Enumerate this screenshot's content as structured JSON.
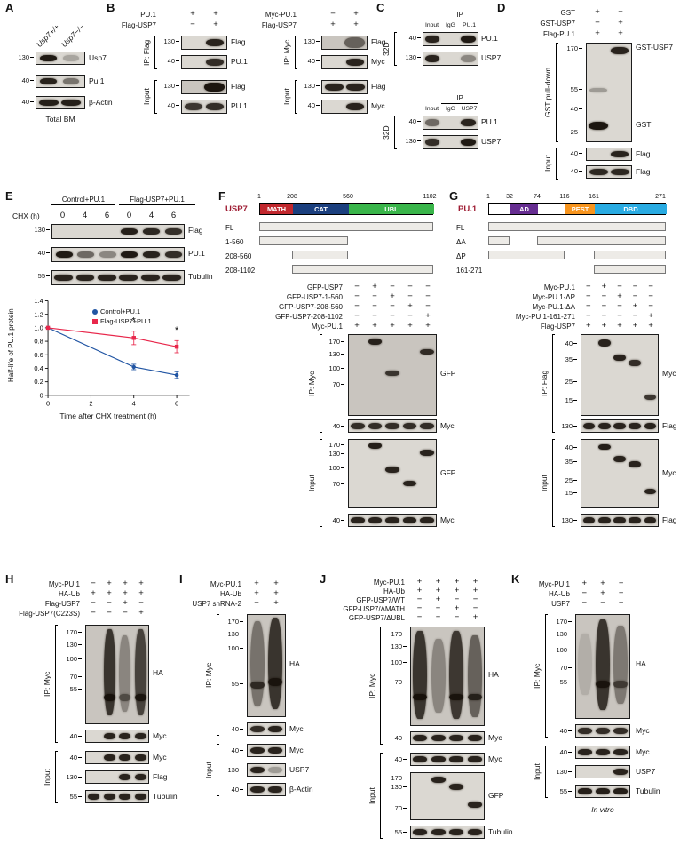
{
  "colors": {
    "usp7_math": "#c1272d",
    "usp7_cat": "#1b3f7e",
    "usp7_ubl": "#39b54a",
    "pu1_ad": "#662d91",
    "pu1_pest": "#f7941d",
    "pu1_dbd": "#29abe2",
    "protein_name": "#9e1b32",
    "control_series": "#2155a3",
    "usp7_series": "#e8274b"
  },
  "A": {
    "letter": "A",
    "lanes": [
      "Usp7+/+",
      "Usp7−/−"
    ],
    "strips": [
      {
        "marker": "130",
        "label": "Usp7"
      },
      {
        "marker": "40",
        "label": "Pu.1"
      },
      {
        "marker": "40",
        "label": "β-Actin"
      }
    ],
    "caption": "Total BM"
  },
  "B": {
    "letter": "B",
    "left": {
      "rows": [
        {
          "label": "PU.1",
          "signs": [
            "+",
            "+"
          ]
        },
        {
          "label": "Flag-USP7",
          "signs": [
            "−",
            "+"
          ]
        }
      ],
      "ip": "IP: Flag",
      "input": "Input",
      "strips": [
        {
          "marker": "130",
          "label": "Flag"
        },
        {
          "marker": "40",
          "label": "PU.1"
        },
        {
          "marker": "130",
          "label": "Flag"
        },
        {
          "marker": "40",
          "label": "PU.1"
        }
      ]
    },
    "right": {
      "rows": [
        {
          "label": "Myc-PU.1",
          "signs": [
            "−",
            "+"
          ]
        },
        {
          "label": "Flag-USP7",
          "signs": [
            "+",
            "+"
          ]
        }
      ],
      "ip": "IP: Myc",
      "input": "Input",
      "strips": [
        {
          "marker": "130",
          "label": "Flag"
        },
        {
          "marker": "40",
          "label": "Myc"
        },
        {
          "marker": "130",
          "label": "Flag"
        },
        {
          "marker": "40",
          "label": "Myc"
        }
      ]
    }
  },
  "C": {
    "letter": "C",
    "groups": [
      {
        "ip": "IP",
        "cell": "32D",
        "cols": [
          "Input",
          "IgG",
          "PU.1"
        ],
        "strips": [
          {
            "marker": "40",
            "label": "PU.1"
          },
          {
            "marker": "130",
            "label": "USP7"
          }
        ]
      },
      {
        "ip": "IP",
        "cell": "32D",
        "cols": [
          "Input",
          "IgG",
          "USP7"
        ],
        "strips": [
          {
            "marker": "40",
            "label": "PU.1"
          },
          {
            "marker": "130",
            "label": "USP7"
          }
        ]
      }
    ]
  },
  "D": {
    "letter": "D",
    "rows": [
      {
        "label": "GST",
        "signs": [
          "+",
          "−"
        ]
      },
      {
        "label": "GST-USP7",
        "signs": [
          "−",
          "+"
        ]
      },
      {
        "label": "Flag-PU.1",
        "signs": [
          "+",
          "+"
        ]
      }
    ],
    "pulldown": "GST pull-down",
    "input": "Input",
    "markers": [
      "170",
      "55",
      "40",
      "25"
    ],
    "band_top": "GST-USP7",
    "band_bottom": "GST",
    "strips": [
      {
        "marker": "40",
        "label": "Flag"
      },
      {
        "marker": "40",
        "label": "Flag"
      }
    ]
  },
  "E": {
    "letter": "E",
    "group1": "Control+PU.1",
    "group2": "Flag-USP7+PU.1",
    "chx": "CHX (h)",
    "timepoints": [
      "0",
      "4",
      "6",
      "0",
      "4",
      "6"
    ],
    "strips": [
      {
        "marker": "130",
        "label": "Flag"
      },
      {
        "marker": "40",
        "label": "PU.1"
      },
      {
        "marker": "55",
        "label": "Tubulin"
      }
    ]
  },
  "chart_data": {
    "type": "line",
    "xlabel": "Time after CHX treatment (h)",
    "ylabel": "Half-life of PU.1 protein",
    "xlim": [
      0,
      6.6
    ],
    "ylim": [
      0,
      1.4
    ],
    "xticks": [
      0,
      2,
      4,
      6
    ],
    "yticks": [
      0,
      0.2,
      0.4,
      0.6,
      0.8,
      1.0,
      1.2,
      1.4
    ],
    "legend_position": "upper right",
    "series": [
      {
        "name": "Control+PU.1",
        "color": "#2155a3",
        "marker": "circle",
        "x": [
          0,
          4,
          6
        ],
        "values": [
          1.0,
          0.42,
          0.3
        ],
        "error": [
          0,
          0.04,
          0.05
        ]
      },
      {
        "name": "Flag-USP7+PU.1",
        "color": "#e8274b",
        "marker": "square",
        "x": [
          0,
          4,
          6
        ],
        "values": [
          1.0,
          0.85,
          0.72
        ],
        "error": [
          0,
          0.1,
          0.09
        ]
      }
    ],
    "annotations": [
      {
        "x": 4,
        "y": 1.06,
        "text": "*"
      },
      {
        "x": 6,
        "y": 0.92,
        "text": "*"
      }
    ]
  },
  "F": {
    "letter": "F",
    "protein": "USP7",
    "scale": [
      "1",
      "208",
      "560",
      "1102"
    ],
    "domains": [
      "MATH",
      "CAT",
      "UBL"
    ],
    "constructs": [
      "FL",
      "1-560",
      "208-560",
      "208-1102"
    ],
    "rows": [
      {
        "label": "GFP-USP7",
        "signs": [
          "−",
          "+",
          "−",
          "−",
          "−"
        ]
      },
      {
        "label": "GFP-USP7-1-560",
        "signs": [
          "−",
          "−",
          "+",
          "−",
          "−"
        ]
      },
      {
        "label": "GFP-USP7-208-560",
        "signs": [
          "−",
          "−",
          "−",
          "+",
          "−"
        ]
      },
      {
        "label": "GFP-USP7-208-1102",
        "signs": [
          "−",
          "−",
          "−",
          "−",
          "+"
        ]
      },
      {
        "label": "Myc-PU.1",
        "signs": [
          "+",
          "+",
          "+",
          "+",
          "+"
        ]
      }
    ],
    "ip": "IP: Myc",
    "input": "Input",
    "ip_blot_markers": [
      "170",
      "130",
      "100",
      "70"
    ],
    "ip_blot_label": "GFP",
    "ip_strip": {
      "marker": "40",
      "label": "Myc"
    },
    "in_blot_markers": [
      "170",
      "130",
      "100",
      "70"
    ],
    "in_blot_label": "GFP",
    "in_strip": {
      "marker": "40",
      "label": "Myc"
    }
  },
  "G": {
    "letter": "G",
    "protein": "PU.1",
    "scale": [
      "1",
      "32",
      "74",
      "116",
      "161",
      "271"
    ],
    "domains": [
      "AD",
      "PEST",
      "DBD"
    ],
    "constructs": [
      "FL",
      "ΔA",
      "ΔP",
      "161-271"
    ],
    "rows": [
      {
        "label": "Myc-PU.1",
        "signs": [
          "−",
          "+",
          "−",
          "−",
          "−"
        ]
      },
      {
        "label": "Myc-PU.1-ΔP",
        "signs": [
          "−",
          "−",
          "+",
          "−",
          "−"
        ]
      },
      {
        "label": "Myc-PU.1-ΔA",
        "signs": [
          "−",
          "−",
          "−",
          "+",
          "−"
        ]
      },
      {
        "label": "Myc-PU.1-161-271",
        "signs": [
          "−",
          "−",
          "−",
          "−",
          "+"
        ]
      },
      {
        "label": "Flag-USP7",
        "signs": [
          "+",
          "+",
          "+",
          "+",
          "+"
        ]
      }
    ],
    "ip": "IP: Flag",
    "input": "Input",
    "ip_blot_markers": [
      "40",
      "35",
      "25",
      "15"
    ],
    "ip_blot_label": "Myc",
    "ip_strip": {
      "marker": "130",
      "label": "Flag"
    },
    "in_blot_markers": [
      "40",
      "35",
      "25",
      "15"
    ],
    "in_blot_label": "Myc",
    "in_strip": {
      "marker": "130",
      "label": "Flag"
    }
  },
  "H": {
    "letter": "H",
    "rows": [
      {
        "label": "Myc-PU.1",
        "signs": [
          "−",
          "+",
          "+",
          "+"
        ]
      },
      {
        "label": "HA-Ub",
        "signs": [
          "+",
          "+",
          "+",
          "+"
        ]
      },
      {
        "label": "Flag-USP7",
        "signs": [
          "−",
          "−",
          "+",
          "−"
        ]
      },
      {
        "label": "Flag-USP7(C223S)",
        "signs": [
          "−",
          "−",
          "−",
          "+"
        ]
      }
    ],
    "ip": "IP: Myc",
    "input": "Input",
    "ip_markers": [
      "170",
      "130",
      "100",
      "70",
      "55"
    ],
    "ip_label": "HA",
    "ip_strip": {
      "marker": "40",
      "label": "Myc"
    },
    "in_strips": [
      {
        "marker": "40",
        "label": "Myc"
      },
      {
        "marker": "130",
        "label": "Flag"
      },
      {
        "marker": "55",
        "label": "Tubulin"
      }
    ]
  },
  "I": {
    "letter": "I",
    "rows": [
      {
        "label": "Myc-PU.1",
        "signs": [
          "+",
          "+"
        ]
      },
      {
        "label": "HA-Ub",
        "signs": [
          "+",
          "+"
        ]
      },
      {
        "label": "USP7 shRNA-2",
        "signs": [
          "−",
          "+"
        ]
      }
    ],
    "ip": "IP: Myc",
    "input": "Input",
    "ip_markers": [
      "170",
      "130",
      "100",
      "55"
    ],
    "ip_label": "HA",
    "ip_strip": {
      "marker": "40",
      "label": "Myc"
    },
    "in_strips": [
      {
        "marker": "40",
        "label": "Myc"
      },
      {
        "marker": "130",
        "label": "USP7"
      },
      {
        "marker": "40",
        "label": "β-Actin"
      }
    ]
  },
  "J": {
    "letter": "J",
    "rows": [
      {
        "label": "Myc-PU.1",
        "signs": [
          "+",
          "+",
          "+",
          "+"
        ]
      },
      {
        "label": "HA-Ub",
        "signs": [
          "+",
          "+",
          "+",
          "+"
        ]
      },
      {
        "label": "GFP-USP7/WT",
        "signs": [
          "−",
          "+",
          "−",
          "−"
        ]
      },
      {
        "label": "GFP-USP7/ΔMATH",
        "signs": [
          "−",
          "−",
          "+",
          "−"
        ]
      },
      {
        "label": "GFP-USP7/ΔUBL",
        "signs": [
          "−",
          "−",
          "−",
          "+"
        ]
      }
    ],
    "ip": "IP: Myc",
    "input": "Input",
    "ip_markers": [
      "170",
      "130",
      "100",
      "70"
    ],
    "ip_label": "HA",
    "ip_strip": {
      "marker": "40",
      "label": "Myc"
    },
    "in_myc": {
      "marker": "40",
      "label": "Myc"
    },
    "in_gfp_markers": [
      "170",
      "130",
      "70"
    ],
    "in_gfp_label": "GFP",
    "in_tub": {
      "marker": "55",
      "label": "Tubulin"
    }
  },
  "K": {
    "letter": "K",
    "rows": [
      {
        "label": "Myc-PU.1",
        "signs": [
          "+",
          "+",
          "+"
        ]
      },
      {
        "label": "HA-Ub",
        "signs": [
          "−",
          "+",
          "+"
        ]
      },
      {
        "label": "USP7",
        "signs": [
          "−",
          "−",
          "+"
        ]
      }
    ],
    "ip": "IP: Myc",
    "input": "Input",
    "ip_markers": [
      "170",
      "130",
      "100",
      "70",
      "55"
    ],
    "ip_label": "HA",
    "ip_strip": {
      "marker": "40",
      "label": "Myc"
    },
    "in_strips": [
      {
        "marker": "40",
        "label": "Myc"
      },
      {
        "marker": "130",
        "label": "USP7"
      },
      {
        "marker": "55",
        "label": "Tubulin"
      }
    ],
    "caption": "In vitro"
  }
}
